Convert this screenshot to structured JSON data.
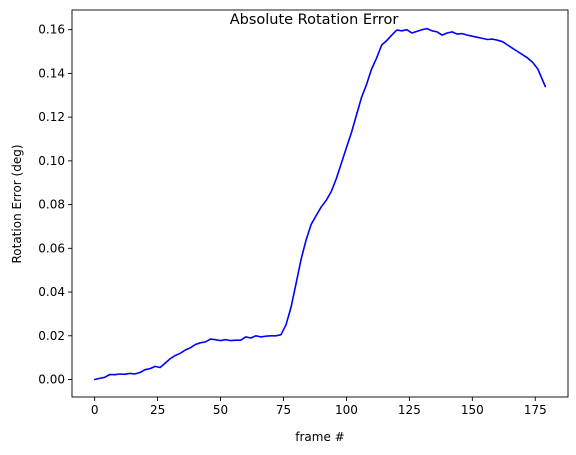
{
  "chart_data": {
    "type": "line",
    "title": "Absolute Rotation Error",
    "xlabel": "frame #",
    "ylabel": "Rotation Error (deg)",
    "xlim": [
      -9,
      188
    ],
    "ylim": [
      -0.008,
      0.169
    ],
    "xticks": [
      0,
      25,
      50,
      75,
      100,
      125,
      150,
      175
    ],
    "yticks": [
      0.0,
      0.02,
      0.04,
      0.06,
      0.08,
      0.1,
      0.12,
      0.14,
      0.16
    ],
    "ytick_labels": [
      "0.00",
      "0.02",
      "0.04",
      "0.06",
      "0.08",
      "0.10",
      "0.12",
      "0.14",
      "0.16"
    ],
    "grid": false,
    "series": [
      {
        "color": "#0000ff",
        "x": [
          0,
          2,
          4,
          6,
          8,
          10,
          12,
          14,
          16,
          18,
          20,
          22,
          24,
          26,
          28,
          30,
          32,
          34,
          36,
          38,
          40,
          42,
          44,
          46,
          48,
          50,
          52,
          54,
          56,
          58,
          60,
          62,
          64,
          66,
          68,
          70,
          72,
          74,
          76,
          78,
          80,
          82,
          84,
          86,
          88,
          90,
          92,
          94,
          96,
          98,
          100,
          102,
          104,
          106,
          108,
          110,
          112,
          114,
          116,
          118,
          120,
          122,
          124,
          126,
          128,
          130,
          132,
          134,
          136,
          138,
          140,
          142,
          144,
          146,
          148,
          150,
          152,
          154,
          156,
          158,
          160,
          162,
          164,
          166,
          168,
          170,
          172,
          174,
          176,
          179
        ],
        "y": [
          0.0,
          0.0005,
          0.001,
          0.0023,
          0.0022,
          0.0025,
          0.0024,
          0.0028,
          0.0025,
          0.0032,
          0.0045,
          0.005,
          0.006,
          0.0055,
          0.0075,
          0.0095,
          0.011,
          0.012,
          0.0135,
          0.0145,
          0.016,
          0.0168,
          0.0172,
          0.0185,
          0.0182,
          0.0178,
          0.0182,
          0.0178,
          0.018,
          0.018,
          0.0195,
          0.019,
          0.02,
          0.0195,
          0.0198,
          0.02,
          0.02,
          0.0205,
          0.025,
          0.033,
          0.044,
          0.055,
          0.064,
          0.071,
          0.075,
          0.079,
          0.082,
          0.086,
          0.092,
          0.099,
          0.106,
          0.113,
          0.121,
          0.129,
          0.135,
          0.142,
          0.147,
          0.153,
          0.155,
          0.1575,
          0.1598,
          0.1595,
          0.16,
          0.1585,
          0.1592,
          0.16,
          0.1605,
          0.1595,
          0.159,
          0.1575,
          0.1585,
          0.159,
          0.158,
          0.1582,
          0.1575,
          0.157,
          0.1565,
          0.156,
          0.1555,
          0.1557,
          0.1552,
          0.1545,
          0.153,
          0.1515,
          0.15,
          0.1485,
          0.147,
          0.145,
          0.142,
          0.134
        ]
      }
    ]
  }
}
